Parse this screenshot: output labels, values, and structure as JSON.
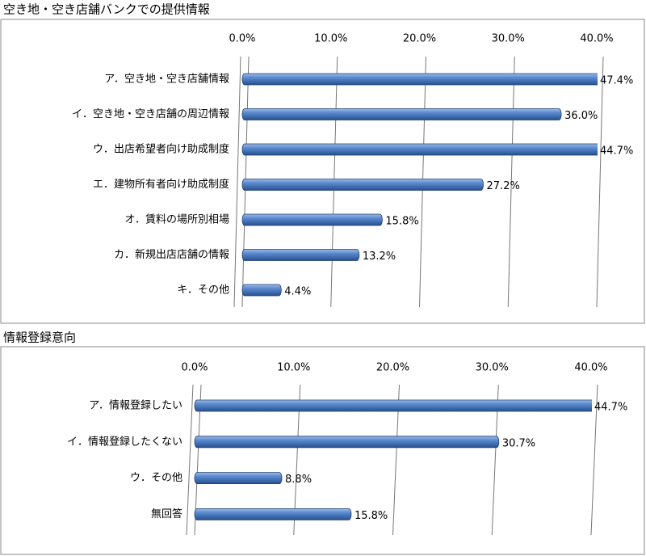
{
  "chart_data": [
    {
      "type": "bar",
      "orientation": "horizontal",
      "title": "空き地・空き店舗バンクでの提供情報",
      "categories": [
        "ア．空き地・空き店舗情報",
        "イ．空き地・空き店舗の周辺情報",
        "ウ．出店希望者向け助成制度",
        "エ．建物所有者向け助成制度",
        "オ．賃料の場所別相場",
        "カ．新規出店店舗の情報",
        "キ．その他"
      ],
      "values": [
        47.4,
        36.0,
        44.7,
        27.2,
        15.8,
        13.2,
        4.4
      ],
      "value_labels": [
        "47.4%",
        "36.0%",
        "44.7%",
        "27.2%",
        "15.8%",
        "13.2%",
        "4.4%"
      ],
      "color": "#4a7cc0",
      "xlim": [
        0,
        40
      ],
      "xticks": [
        {
          "value": 0,
          "label": "0.0%"
        },
        {
          "value": 10,
          "label": "10.0%"
        },
        {
          "value": 20,
          "label": "20.0%"
        },
        {
          "value": 30,
          "label": "30.0%"
        },
        {
          "value": 40,
          "label": "40.0%"
        }
      ],
      "grid": true
    },
    {
      "type": "bar",
      "orientation": "horizontal",
      "title": "情報登録意向",
      "categories": [
        "ア．情報登録したい",
        "イ．情報登録したくない",
        "ウ．その他",
        "無回答"
      ],
      "values": [
        44.7,
        30.7,
        8.8,
        15.8
      ],
      "value_labels": [
        "44.7%",
        "30.7%",
        "8.8%",
        "15.8%"
      ],
      "color": "#4a7cc0",
      "xlim": [
        0,
        40
      ],
      "xticks": [
        {
          "value": 0,
          "label": "0.0%"
        },
        {
          "value": 10,
          "label": "10.0%"
        },
        {
          "value": 20,
          "label": "20.0%"
        },
        {
          "value": 30,
          "label": "30.0%"
        },
        {
          "value": 40,
          "label": "40.0%"
        }
      ],
      "grid": true
    }
  ]
}
